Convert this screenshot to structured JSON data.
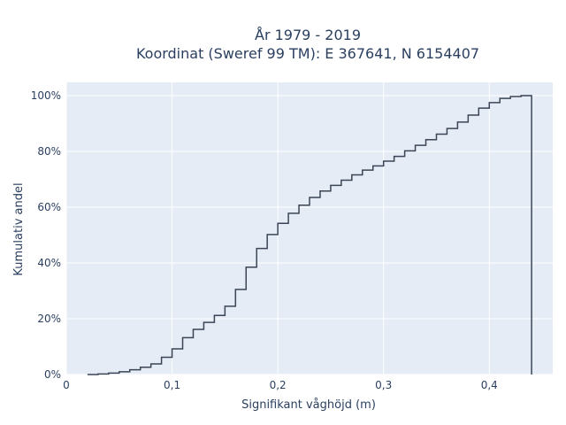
{
  "chart_data": {
    "type": "line",
    "subtype": "cumulative-step",
    "title_line1": "År 1979 - 2019",
    "title_line2": "Koordinat (Sweref 99 TM): E 367641, N 6154407",
    "xlabel": "Signifikant våghöjd (m)",
    "ylabel": "Kumulativ andel",
    "xlim": [
      0,
      0.46
    ],
    "ylim": [
      0,
      1.0
    ],
    "x_ticks": [
      0,
      0.1,
      0.2,
      0.3,
      0.4
    ],
    "x_tick_labels": [
      "0",
      "0,1",
      "0,2",
      "0,3",
      "0,4"
    ],
    "y_ticks": [
      0,
      0.2,
      0.4,
      0.6,
      0.8,
      1.0
    ],
    "y_tick_labels": [
      "0%",
      "20%",
      "40%",
      "60%",
      "80%",
      "100%"
    ],
    "grid": true,
    "legend": "none",
    "colors": {
      "line": "#3b4555",
      "plot_bg": "#e5ecf6",
      "grid": "#ffffff",
      "text": "#2a3f5f"
    },
    "series": [
      {
        "x": [
          0.02,
          0.03,
          0.04,
          0.05,
          0.06,
          0.07,
          0.08,
          0.09,
          0.1,
          0.11,
          0.12,
          0.13,
          0.14,
          0.15,
          0.16,
          0.17,
          0.18,
          0.19,
          0.2,
          0.21,
          0.22,
          0.23,
          0.24,
          0.25,
          0.26,
          0.27,
          0.28,
          0.29,
          0.3,
          0.31,
          0.32,
          0.33,
          0.34,
          0.35,
          0.36,
          0.37,
          0.38,
          0.39,
          0.4,
          0.41,
          0.42,
          0.43,
          0.44
        ],
        "y": [
          0.0,
          0.002,
          0.005,
          0.01,
          0.017,
          0.026,
          0.038,
          0.062,
          0.092,
          0.132,
          0.162,
          0.187,
          0.212,
          0.245,
          0.305,
          0.385,
          0.452,
          0.502,
          0.542,
          0.578,
          0.607,
          0.635,
          0.658,
          0.678,
          0.697,
          0.716,
          0.733,
          0.748,
          0.765,
          0.782,
          0.802,
          0.822,
          0.842,
          0.862,
          0.882,
          0.905,
          0.93,
          0.955,
          0.975,
          0.99,
          0.997,
          1.0,
          0.0
        ]
      }
    ]
  }
}
